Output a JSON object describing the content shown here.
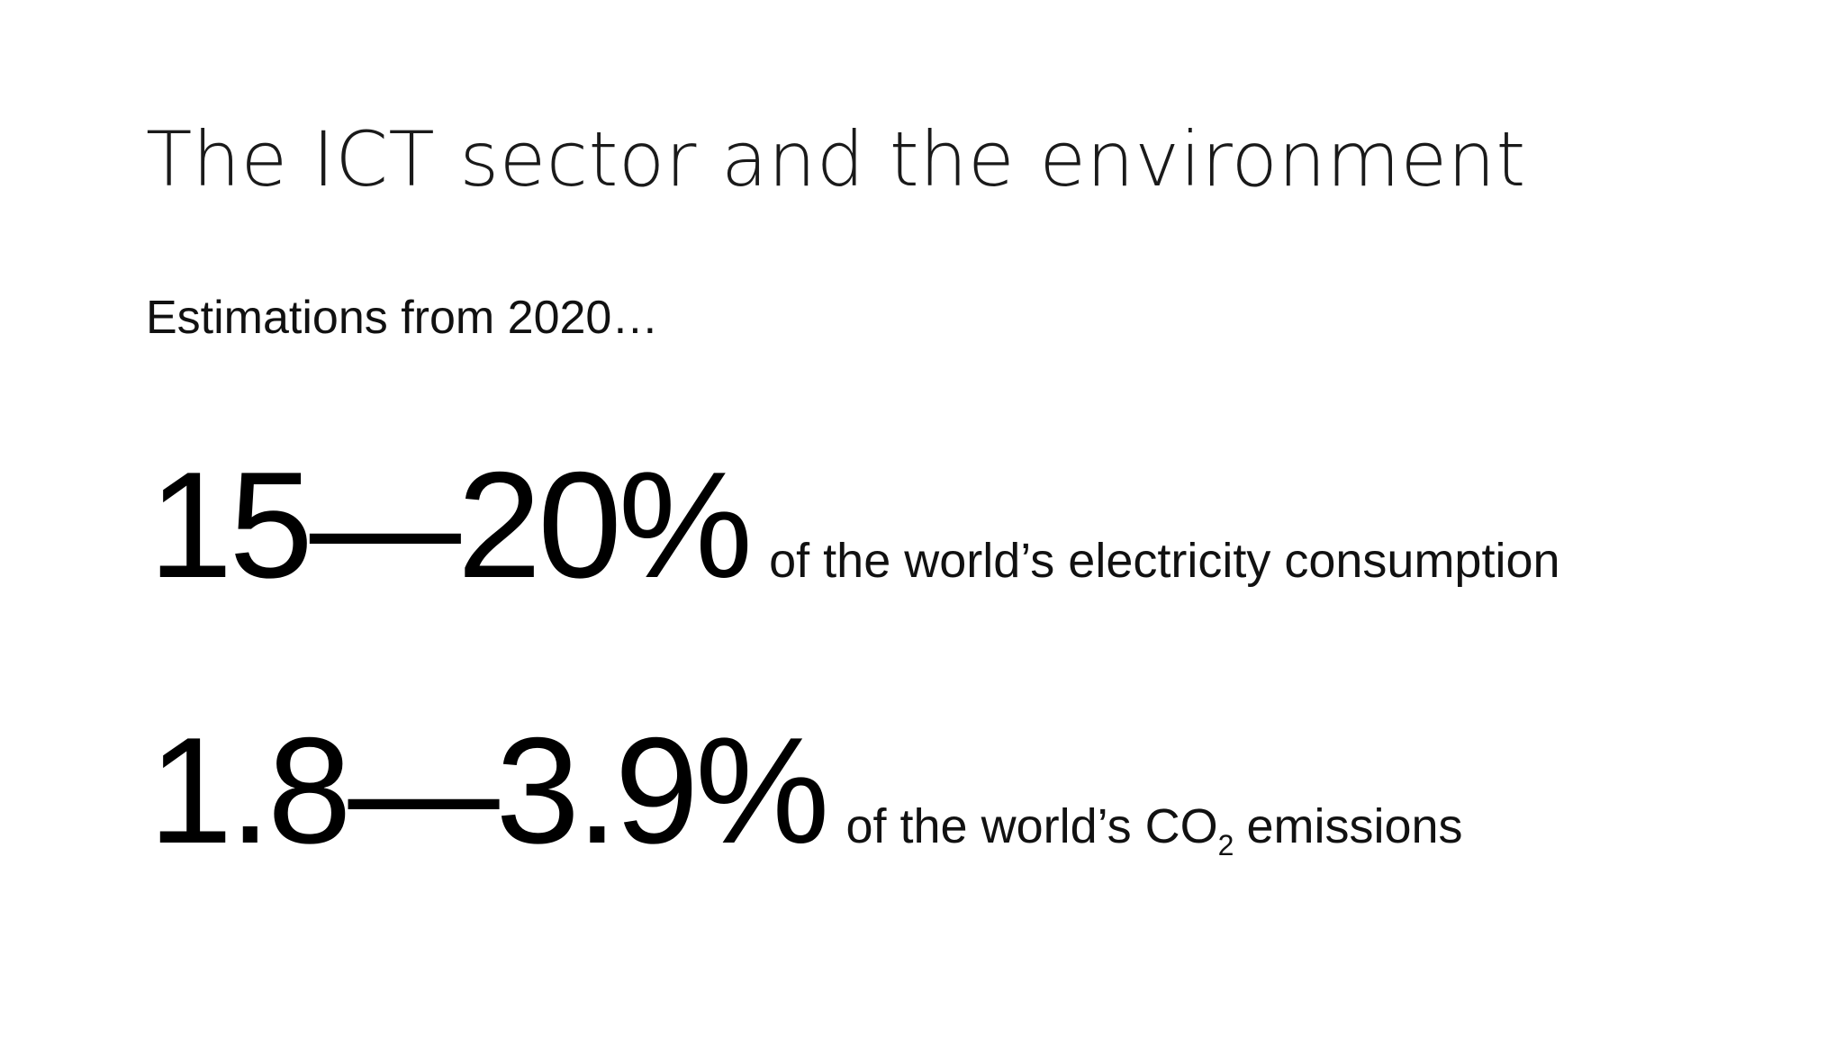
{
  "slide": {
    "title": "The ICT sector and the environment",
    "subtitle": "Estimations from 2020…",
    "stats": [
      {
        "value": "15—20%",
        "text": "of the world’s electricity consumption"
      },
      {
        "value": "1.8—3.9%",
        "text_before": "of the world’s CO",
        "subscript": "2",
        "text_after": "emissions"
      }
    ]
  }
}
